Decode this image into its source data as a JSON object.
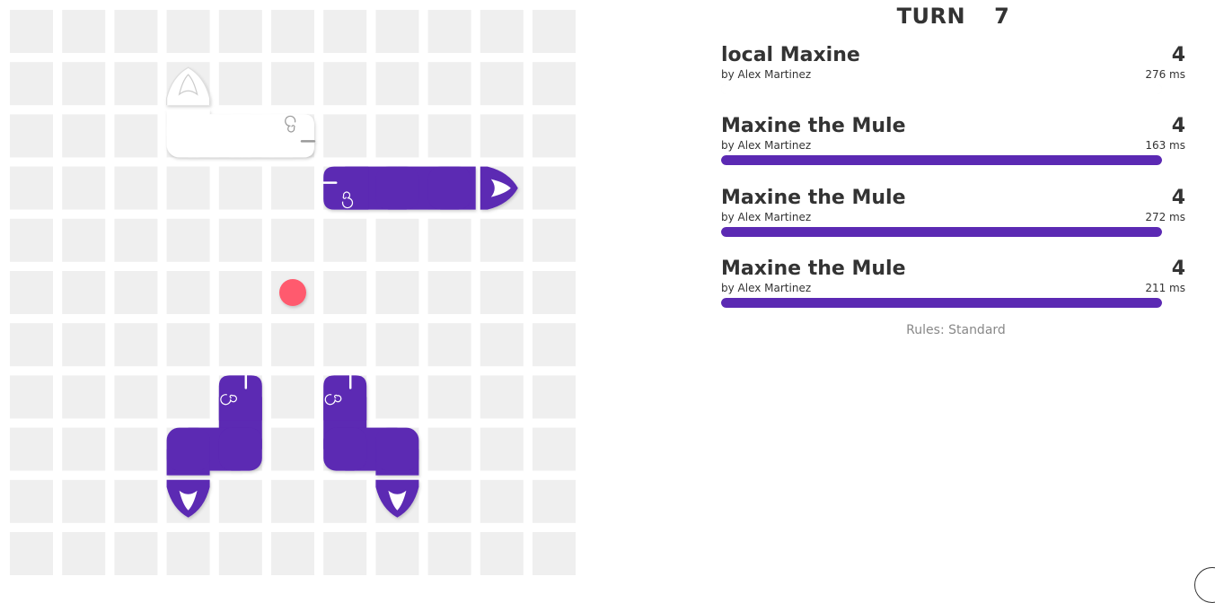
{
  "game": {
    "turn_label": "TURN",
    "turn_number": "7",
    "rules_text": "Rules: Standard"
  },
  "board": {
    "width": 11,
    "height": 11,
    "tile_color": "#efefef",
    "food": [
      {
        "col": 5,
        "row": 5
      }
    ],
    "food_color": "#ff5a6e",
    "snakes": [
      {
        "id": "local",
        "color": "#ffffff",
        "head_icon": "spiral-eye-head",
        "tail_icon": "flame-tail",
        "body": [
          [
            5,
            2
          ],
          [
            4,
            2
          ],
          [
            3,
            2
          ],
          [
            3,
            1
          ]
        ]
      },
      {
        "id": "mule1",
        "color": "#5b29b3",
        "head_icon": "spiral-eye-head",
        "tail_icon": "flame-tail",
        "body": [
          [
            6,
            3
          ],
          [
            7,
            3
          ],
          [
            8,
            3
          ],
          [
            9,
            3
          ]
        ]
      },
      {
        "id": "mule2",
        "color": "#5b29b3",
        "head_icon": "spiral-eye-head",
        "tail_icon": "flame-tail",
        "body": [
          [
            4,
            7
          ],
          [
            4,
            8
          ],
          [
            3,
            8
          ],
          [
            3,
            9
          ]
        ]
      },
      {
        "id": "mule3",
        "color": "#5b29b3",
        "head_icon": "spiral-eye-head",
        "tail_icon": "flame-tail",
        "body": [
          [
            6,
            7
          ],
          [
            6,
            8
          ],
          [
            7,
            8
          ],
          [
            7,
            9
          ]
        ]
      }
    ]
  },
  "scoreboard": [
    {
      "name": "local Maxine",
      "author": "by Alex Martinez",
      "length": "4",
      "latency": "276 ms",
      "health": 100,
      "color": "#ffffff"
    },
    {
      "name": "Maxine the Mule",
      "author": "by Alex Martinez",
      "length": "4",
      "latency": "163 ms",
      "health": 100,
      "color": "#5b29b3"
    },
    {
      "name": "Maxine the Mule",
      "author": "by Alex Martinez",
      "length": "4",
      "latency": "272 ms",
      "health": 100,
      "color": "#5b29b3"
    },
    {
      "name": "Maxine the Mule",
      "author": "by Alex Martinez",
      "length": "4",
      "latency": "211 ms",
      "health": 100,
      "color": "#5b29b3"
    }
  ]
}
